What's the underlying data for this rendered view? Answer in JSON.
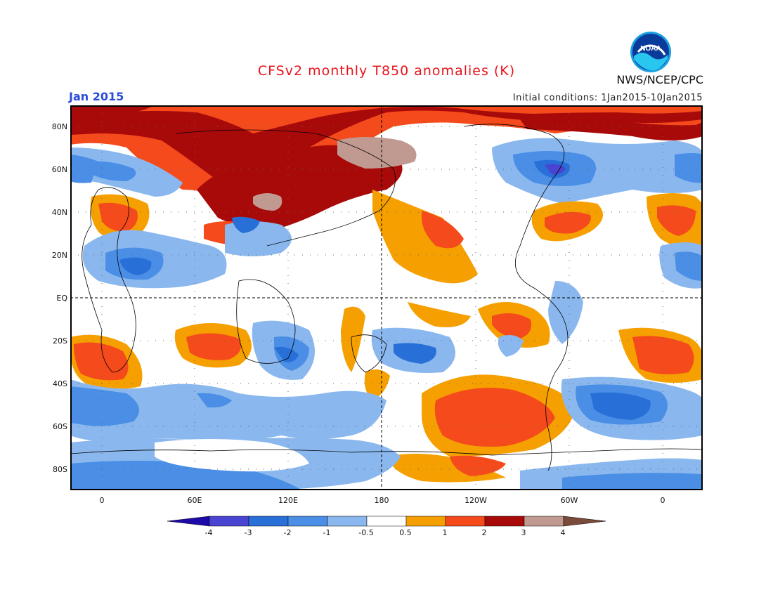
{
  "header": {
    "title": "CFSv2 monthly T850 anomalies (K)",
    "month": "Jan 2015",
    "initial_conditions": "Initial conditions: 1Jan2015-10Jan2015",
    "agency": "NWS/NCEP/CPC",
    "logo_text": "NOAA"
  },
  "map": {
    "projection": "cylindrical equidistant",
    "lon_center": "180",
    "lat_labels": [
      "80N",
      "60N",
      "40N",
      "20N",
      "EQ",
      "20S",
      "40S",
      "60S",
      "80S"
    ],
    "lon_labels": [
      "0",
      "60E",
      "120E",
      "180",
      "120W",
      "60W",
      "0"
    ],
    "reference_lines": [
      "equator",
      "180 meridian"
    ]
  },
  "colorbar": {
    "labels": [
      "-4",
      "-3",
      "-2",
      "-1",
      "-0.5",
      "0.5",
      "1",
      "2",
      "3",
      "4"
    ],
    "colors": [
      "#1e0aa8",
      "#4a44d2",
      "#2870d8",
      "#4a8ee6",
      "#8ab8ee",
      "#ffffff",
      "#f5a000",
      "#f44a1c",
      "#a80a0a",
      "#c09a90",
      "#7a4a3a"
    ]
  }
}
